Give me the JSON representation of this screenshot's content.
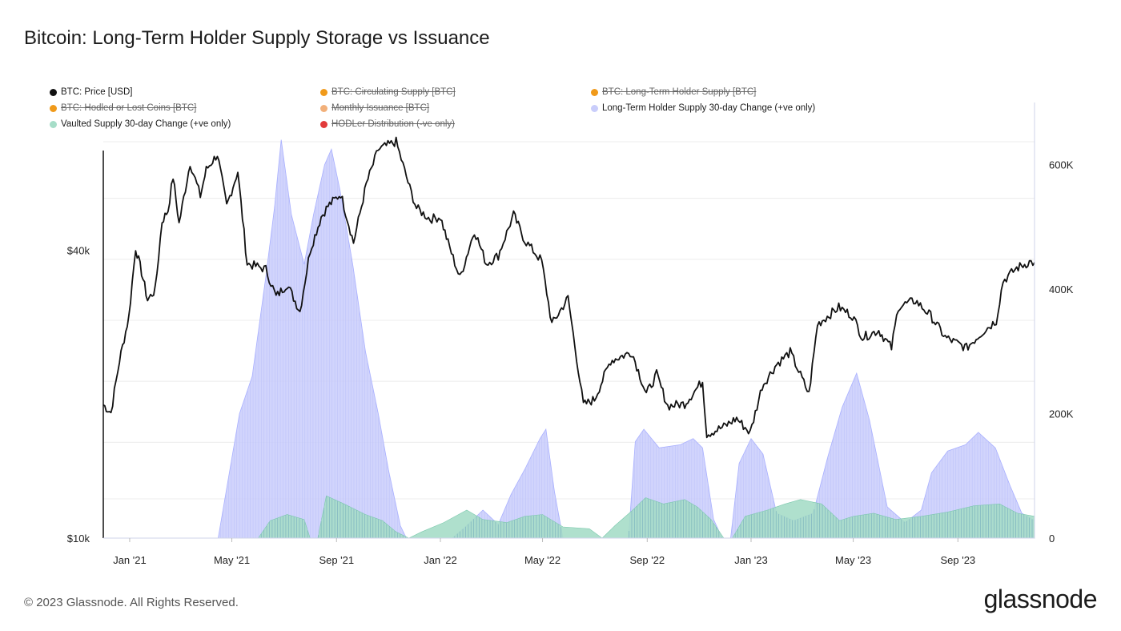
{
  "title": "Bitcoin: Long-Term Holder Supply Storage vs Issuance",
  "footer": "© 2023 Glassnode. All Rights Reserved.",
  "brand": "glassnode",
  "chart_data": {
    "type": "area",
    "legend": [
      {
        "label": "BTC: Price [USD]",
        "color": "#111111",
        "active": true
      },
      {
        "label": "BTC: Circulating Supply [BTC]",
        "color": "#f09a1a",
        "active": false
      },
      {
        "label": "BTC: Long-Term Holder Supply [BTC]",
        "color": "#f09a1a",
        "active": false
      },
      {
        "label": "BTC: Hodled or Lost Coins [BTC]",
        "color": "#f09a1a",
        "active": false
      },
      {
        "label": "Monthly Issuance [BTC]",
        "color": "#f2b07a",
        "active": false
      },
      {
        "label": "Long-Term Holder Supply 30-day Change (+ve only)",
        "color": "#c9cdfb",
        "active": true
      },
      {
        "label": "Vaulted Supply 30-day Change (+ve only)",
        "color": "#a6ddc8",
        "active": true
      },
      {
        "label": "HODLer Distribution (-ve only)",
        "color": "#e23b3b",
        "active": false
      }
    ],
    "x_ticks": [
      "Jan '21",
      "May '21",
      "Sep '21",
      "Jan '22",
      "May '22",
      "Sep '22",
      "Jan '23",
      "May '23",
      "Sep '23"
    ],
    "y_left": {
      "scale": "log",
      "ticks": [
        "$10k",
        "$40k"
      ],
      "range": [
        10000,
        68000
      ]
    },
    "y_right": {
      "ticks": [
        "0",
        "200K",
        "400K",
        "600K"
      ],
      "range": [
        0,
        700000
      ]
    },
    "x_range": [
      "2020-12-01",
      "2023-11-30"
    ],
    "series": [
      {
        "name": "BTC: Price [USD]",
        "axis": "left",
        "points": [
          [
            "2020-12-01",
            19000
          ],
          [
            "2020-12-10",
            18300
          ],
          [
            "2020-12-20",
            23500
          ],
          [
            "2020-12-31",
            29000
          ],
          [
            "2021-01-08",
            40500
          ],
          [
            "2021-01-15",
            36000
          ],
          [
            "2021-01-22",
            31500
          ],
          [
            "2021-01-31",
            33000
          ],
          [
            "2021-02-08",
            46000
          ],
          [
            "2021-02-15",
            48500
          ],
          [
            "2021-02-21",
            57000
          ],
          [
            "2021-02-28",
            45500
          ],
          [
            "2021-03-13",
            61000
          ],
          [
            "2021-03-25",
            52000
          ],
          [
            "2021-04-01",
            59000
          ],
          [
            "2021-04-14",
            63500
          ],
          [
            "2021-04-25",
            49500
          ],
          [
            "2021-05-08",
            58500
          ],
          [
            "2021-05-19",
            37500
          ],
          [
            "2021-05-31",
            37000
          ],
          [
            "2021-06-10",
            36500
          ],
          [
            "2021-06-22",
            32000
          ],
          [
            "2021-07-05",
            34000
          ],
          [
            "2021-07-20",
            29800
          ],
          [
            "2021-08-01",
            40000
          ],
          [
            "2021-08-14",
            47000
          ],
          [
            "2021-08-22",
            49500
          ],
          [
            "2021-09-06",
            52500
          ],
          [
            "2021-09-21",
            41500
          ],
          [
            "2021-10-06",
            55000
          ],
          [
            "2021-10-20",
            65000
          ],
          [
            "2021-11-10",
            67500
          ],
          [
            "2021-11-26",
            54000
          ],
          [
            "2021-12-04",
            49000
          ],
          [
            "2021-12-20",
            46500
          ],
          [
            "2022-01-01",
            47000
          ],
          [
            "2022-01-10",
            41500
          ],
          [
            "2022-01-24",
            35000
          ],
          [
            "2022-02-10",
            44000
          ],
          [
            "2022-02-24",
            37500
          ],
          [
            "2022-03-10",
            39000
          ],
          [
            "2022-03-28",
            47500
          ],
          [
            "2022-04-10",
            42000
          ],
          [
            "2022-04-30",
            38000
          ],
          [
            "2022-05-12",
            28000
          ],
          [
            "2022-05-31",
            31800
          ],
          [
            "2022-06-18",
            19000
          ],
          [
            "2022-07-01",
            19500
          ],
          [
            "2022-07-20",
            23500
          ],
          [
            "2022-08-14",
            24500
          ],
          [
            "2022-08-31",
            20000
          ],
          [
            "2022-09-12",
            22000
          ],
          [
            "2022-09-25",
            18900
          ],
          [
            "2022-10-15",
            19100
          ],
          [
            "2022-11-05",
            21300
          ],
          [
            "2022-11-10",
            16500
          ],
          [
            "2022-11-30",
            17100
          ],
          [
            "2022-12-15",
            17800
          ],
          [
            "2022-12-31",
            16600
          ],
          [
            "2023-01-14",
            20800
          ],
          [
            "2023-01-31",
            23100
          ],
          [
            "2023-02-16",
            24500
          ],
          [
            "2023-03-10",
            20000
          ],
          [
            "2023-03-20",
            28000
          ],
          [
            "2023-04-14",
            30400
          ],
          [
            "2023-04-30",
            29200
          ],
          [
            "2023-05-12",
            26300
          ],
          [
            "2023-05-31",
            27200
          ],
          [
            "2023-06-15",
            25000
          ],
          [
            "2023-06-23",
            30500
          ],
          [
            "2023-07-13",
            31400
          ],
          [
            "2023-07-31",
            29200
          ],
          [
            "2023-08-17",
            26300
          ],
          [
            "2023-09-11",
            25000
          ],
          [
            "2023-09-30",
            27000
          ],
          [
            "2023-10-16",
            28500
          ],
          [
            "2023-10-24",
            34500
          ],
          [
            "2023-11-09",
            36700
          ],
          [
            "2023-11-24",
            37800
          ],
          [
            "2023-11-30",
            37700
          ]
        ]
      },
      {
        "name": "Long-Term Holder Supply 30-day Change (+ve only)",
        "axis": "right",
        "points": [
          [
            "2020-12-01",
            0
          ],
          [
            "2021-04-15",
            0
          ],
          [
            "2021-04-25",
            80000
          ],
          [
            "2021-05-10",
            200000
          ],
          [
            "2021-05-25",
            260000
          ],
          [
            "2021-06-10",
            420000
          ],
          [
            "2021-06-20",
            530000
          ],
          [
            "2021-06-28",
            640000
          ],
          [
            "2021-07-10",
            520000
          ],
          [
            "2021-07-25",
            440000
          ],
          [
            "2021-08-05",
            520000
          ],
          [
            "2021-08-18",
            600000
          ],
          [
            "2021-08-26",
            625000
          ],
          [
            "2021-09-05",
            560000
          ],
          [
            "2021-09-20",
            440000
          ],
          [
            "2021-10-05",
            300000
          ],
          [
            "2021-10-20",
            200000
          ],
          [
            "2021-11-01",
            110000
          ],
          [
            "2021-11-15",
            20000
          ],
          [
            "2021-11-22",
            0
          ],
          [
            "2022-01-15",
            0
          ],
          [
            "2022-02-01",
            20000
          ],
          [
            "2022-02-20",
            45000
          ],
          [
            "2022-03-10",
            22000
          ],
          [
            "2022-03-25",
            70000
          ],
          [
            "2022-04-10",
            110000
          ],
          [
            "2022-04-28",
            160000
          ],
          [
            "2022-05-05",
            175000
          ],
          [
            "2022-05-15",
            75000
          ],
          [
            "2022-05-25",
            0
          ],
          [
            "2022-08-10",
            0
          ],
          [
            "2022-08-18",
            155000
          ],
          [
            "2022-08-28",
            175000
          ],
          [
            "2022-09-15",
            145000
          ],
          [
            "2022-10-10",
            150000
          ],
          [
            "2022-10-25",
            160000
          ],
          [
            "2022-11-05",
            145000
          ],
          [
            "2022-11-18",
            30000
          ],
          [
            "2022-11-28",
            0
          ],
          [
            "2022-12-08",
            0
          ],
          [
            "2022-12-18",
            120000
          ],
          [
            "2023-01-01",
            160000
          ],
          [
            "2023-01-15",
            135000
          ],
          [
            "2023-01-31",
            40000
          ],
          [
            "2023-02-20",
            28000
          ],
          [
            "2023-03-15",
            40000
          ],
          [
            "2023-04-01",
            130000
          ],
          [
            "2023-04-18",
            210000
          ],
          [
            "2023-05-05",
            265000
          ],
          [
            "2023-05-20",
            190000
          ],
          [
            "2023-06-10",
            50000
          ],
          [
            "2023-07-01",
            25000
          ],
          [
            "2023-07-20",
            45000
          ],
          [
            "2023-08-01",
            105000
          ],
          [
            "2023-08-20",
            140000
          ],
          [
            "2023-09-10",
            150000
          ],
          [
            "2023-09-25",
            170000
          ],
          [
            "2023-10-15",
            145000
          ],
          [
            "2023-11-01",
            85000
          ],
          [
            "2023-11-15",
            40000
          ],
          [
            "2023-11-30",
            28000
          ]
        ]
      },
      {
        "name": "Vaulted Supply 30-day Change (+ve only)",
        "axis": "right",
        "points": [
          [
            "2020-12-01",
            0
          ],
          [
            "2021-06-01",
            0
          ],
          [
            "2021-06-15",
            28000
          ],
          [
            "2021-07-05",
            38000
          ],
          [
            "2021-07-25",
            30000
          ],
          [
            "2021-08-01",
            0
          ],
          [
            "2021-08-10",
            0
          ],
          [
            "2021-08-20",
            68000
          ],
          [
            "2021-09-10",
            55000
          ],
          [
            "2021-10-05",
            38000
          ],
          [
            "2021-10-25",
            28000
          ],
          [
            "2021-11-10",
            10000
          ],
          [
            "2021-11-25",
            0
          ],
          [
            "2021-12-10",
            10000
          ],
          [
            "2022-01-05",
            25000
          ],
          [
            "2022-02-01",
            45000
          ],
          [
            "2022-02-20",
            30000
          ],
          [
            "2022-03-20",
            25000
          ],
          [
            "2022-04-10",
            35000
          ],
          [
            "2022-05-01",
            38000
          ],
          [
            "2022-05-25",
            18000
          ],
          [
            "2022-06-25",
            15000
          ],
          [
            "2022-07-10",
            0
          ],
          [
            "2022-07-25",
            20000
          ],
          [
            "2022-08-15",
            45000
          ],
          [
            "2022-08-30",
            65000
          ],
          [
            "2022-09-20",
            55000
          ],
          [
            "2022-10-15",
            62000
          ],
          [
            "2022-10-30",
            50000
          ],
          [
            "2022-11-15",
            30000
          ],
          [
            "2022-11-30",
            0
          ],
          [
            "2022-12-10",
            0
          ],
          [
            "2022-12-25",
            35000
          ],
          [
            "2023-01-20",
            45000
          ],
          [
            "2023-02-10",
            55000
          ],
          [
            "2023-02-28",
            62000
          ],
          [
            "2023-03-25",
            55000
          ],
          [
            "2023-04-15",
            28000
          ],
          [
            "2023-05-01",
            35000
          ],
          [
            "2023-05-25",
            40000
          ],
          [
            "2023-06-20",
            30000
          ],
          [
            "2023-07-20",
            35000
          ],
          [
            "2023-08-20",
            42000
          ],
          [
            "2023-09-20",
            52000
          ],
          [
            "2023-10-20",
            55000
          ],
          [
            "2023-11-10",
            40000
          ],
          [
            "2023-11-30",
            35000
          ]
        ]
      }
    ],
    "colors": {
      "price": "#111111",
      "lth_area": "#c9cdfb",
      "lth_line": "#a8afff",
      "vault_area": "#a6ddc8",
      "overlap": "#6fb3b0"
    }
  }
}
